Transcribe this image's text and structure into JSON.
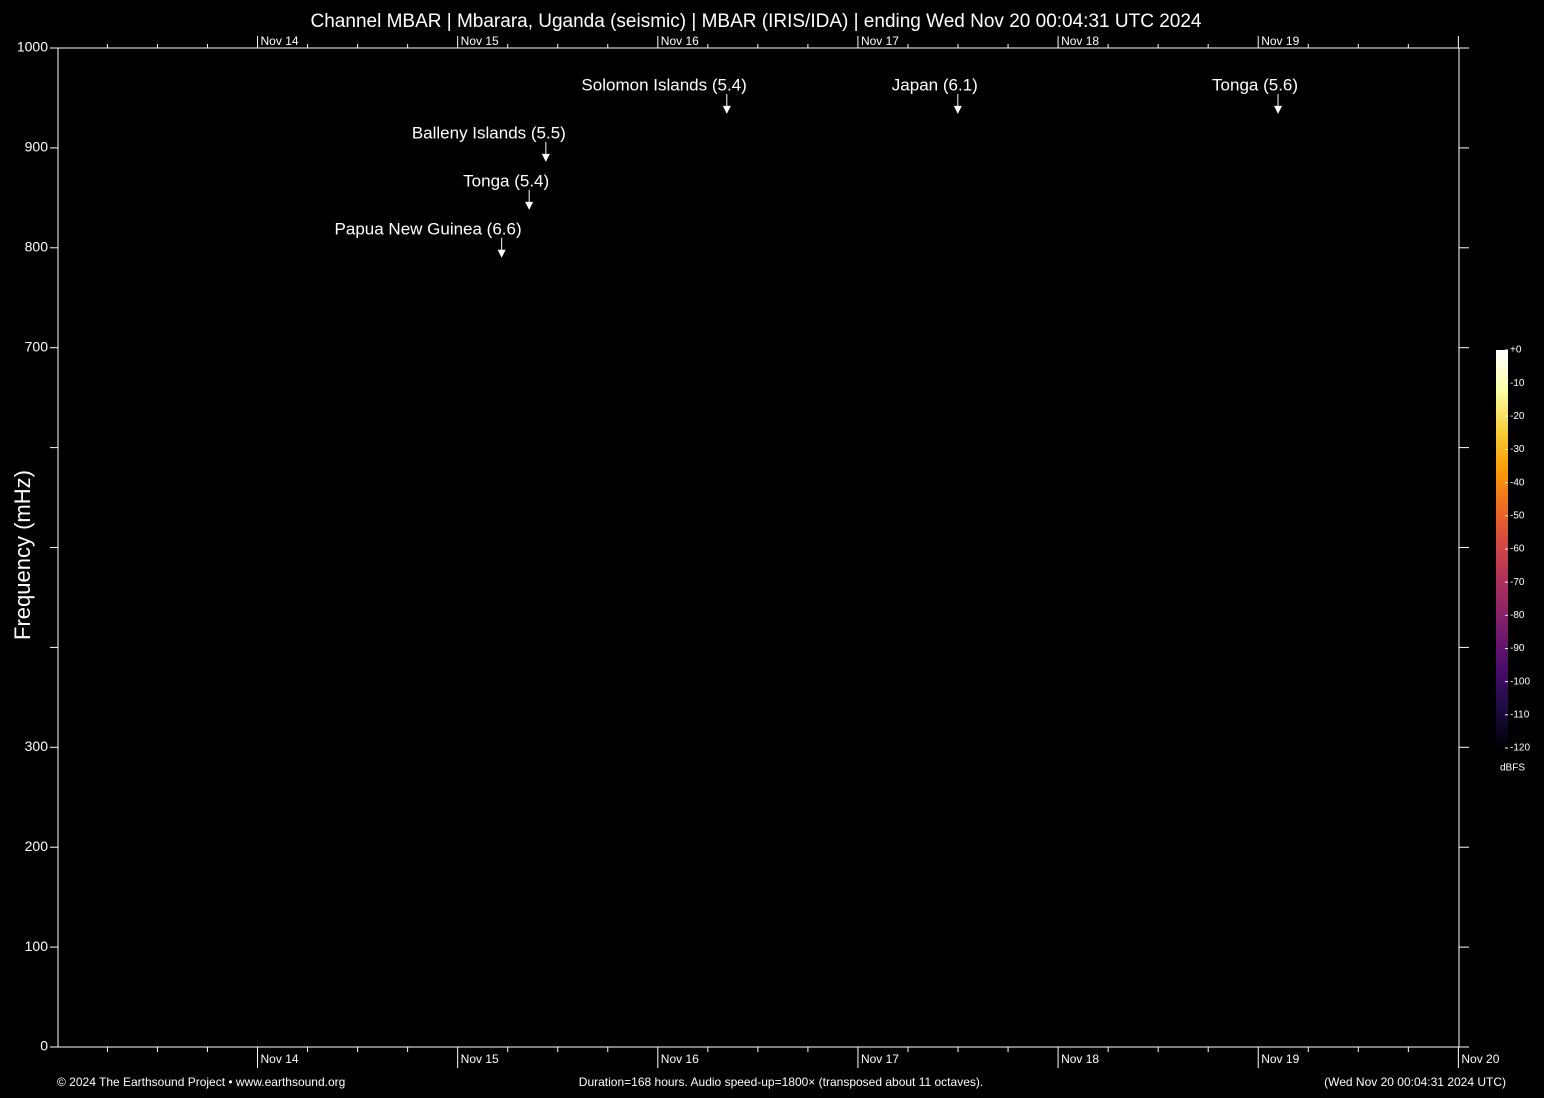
{
  "chart_data": {
    "type": "spectrogram",
    "title": "Channel MBAR | Mbarara, Uganda (seismic) | MBAR (IRIS/IDA) | ending Wed Nov 20 00:04:31 UTC 2024",
    "y_label": "Frequency (mHz)",
    "ylim": [
      0,
      1000
    ],
    "yticks": [
      0,
      100,
      200,
      300,
      700,
      800,
      900,
      1000
    ],
    "yticks_minor": [
      400,
      500,
      600
    ],
    "xlim": [
      0,
      168
    ],
    "xticks": [
      {
        "value": 23.925,
        "label": "Nov 14"
      },
      {
        "value": 47.925,
        "label": "Nov 15"
      },
      {
        "value": 71.925,
        "label": "Nov 16"
      },
      {
        "value": 95.925,
        "label": "Nov 17"
      },
      {
        "value": 119.925,
        "label": "Nov 18"
      },
      {
        "value": 143.925,
        "label": "Nov 19"
      },
      {
        "value": 167.925,
        "label": "Nov 20"
      }
    ],
    "xticks_minor": [
      5.925,
      11.925,
      17.925,
      29.925,
      35.925,
      41.925,
      53.925,
      59.925,
      65.925,
      77.925,
      83.925,
      89.925,
      101.925,
      107.925,
      113.925,
      125.925,
      131.925,
      137.925,
      149.925,
      155.925,
      161.925
    ],
    "annotations": [
      {
        "text": "Solomon Islands (5.4)",
        "x": 80.2,
        "y": 934
      },
      {
        "text": "Japan (6.1)",
        "x": 107.9,
        "y": 934
      },
      {
        "text": "Tonga (5.6)",
        "x": 146.3,
        "y": 934
      },
      {
        "text": "Balleny Islands (5.5)",
        "x": 58.5,
        "y": 886
      },
      {
        "text": "Tonga (5.4)",
        "x": 56.5,
        "y": 838
      },
      {
        "text": "Papua New Guinea (6.6)",
        "x": 53.2,
        "y": 790
      }
    ],
    "colorbar": {
      "label": "dBFS",
      "clim": [
        -120,
        0
      ],
      "ticks": [
        {
          "value": 0,
          "label": "+0"
        },
        -10,
        -20,
        -30,
        -40,
        -50,
        -60,
        -70,
        -80,
        -90,
        -100,
        -110,
        -120
      ],
      "colors": [
        "#000004",
        "#1b0c41",
        "#4a0c6b",
        "#781c6d",
        "#a52c60",
        "#cf4446",
        "#ed6925",
        "#fb9b06",
        "#f7d13d",
        "#fcffa4",
        "#ffffff"
      ]
    },
    "footer": {
      "left": "© 2024 The Earthsound Project • www.earthsound.org",
      "center": "Duration=168 hours. Audio speed-up=1800× (transposed about 11 octaves).",
      "right": "(Wed Nov 20 00:04:31 2024 UTC)"
    }
  }
}
